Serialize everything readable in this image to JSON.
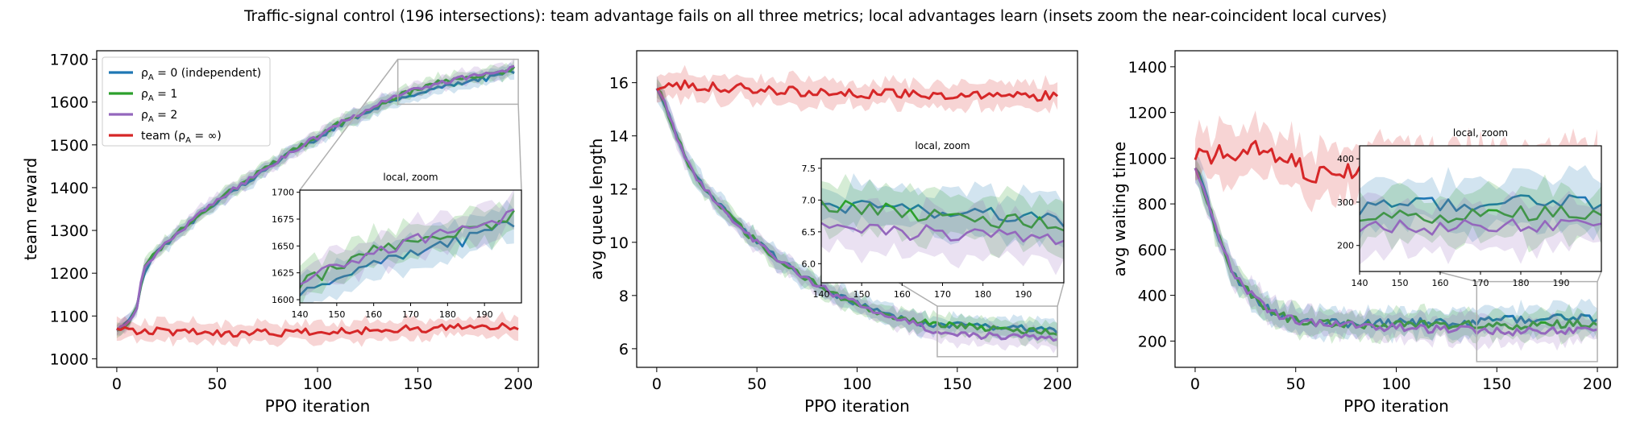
{
  "figure": {
    "title": "Traffic-signal control (196 intersections): team advantage fails on all three metrics; local advantages learn (insets zoom the near-coincident local curves)"
  },
  "colors": {
    "independent": "#1f77b4",
    "rho1": "#2ca02c",
    "rho2": "#9467bd",
    "team": "#d62728",
    "zoom_box": "#b0b0b0"
  },
  "legend": {
    "placement": "upper-left",
    "entries": [
      {
        "key": "independent",
        "prefix": "ρ",
        "sub": "A",
        "suffix": " = 0 (independent)"
      },
      {
        "key": "rho1",
        "prefix": "ρ",
        "sub": "A",
        "suffix": " = 1"
      },
      {
        "key": "rho2",
        "prefix": "ρ",
        "sub": "A",
        "suffix": " = 2"
      },
      {
        "key": "team",
        "prefix": "team (ρ",
        "sub": "A",
        "suffix": " = ∞)"
      }
    ]
  },
  "chart_data": [
    {
      "type": "line",
      "xlabel": "PPO iteration",
      "ylabel": "team reward",
      "xlim": [
        -10,
        210
      ],
      "ylim": [
        980,
        1720
      ],
      "xticks": [
        0,
        50,
        100,
        150,
        200
      ],
      "yticks": [
        1000,
        1100,
        1200,
        1300,
        1400,
        1500,
        1600,
        1700
      ],
      "shaded_bands": true,
      "series": [
        {
          "key": "independent",
          "anchors": [
            [
              0,
              1065
            ],
            [
              5,
              1082
            ],
            [
              10,
              1115
            ],
            [
              13,
              1200
            ],
            [
              20,
              1250
            ],
            [
              30,
              1290
            ],
            [
              40,
              1330
            ],
            [
              50,
              1370
            ],
            [
              60,
              1400
            ],
            [
              70,
              1430
            ],
            [
              80,
              1460
            ],
            [
              90,
              1490
            ],
            [
              100,
              1515
            ],
            [
              110,
              1545
            ],
            [
              120,
              1565
            ],
            [
              130,
              1590
            ],
            [
              140,
              1608
            ],
            [
              150,
              1622
            ],
            [
              160,
              1635
            ],
            [
              170,
              1645
            ],
            [
              180,
              1652
            ],
            [
              190,
              1660
            ],
            [
              198,
              1672
            ]
          ],
          "noise": 6,
          "band": 15
        },
        {
          "key": "rho1",
          "anchors": [
            [
              0,
              1065
            ],
            [
              5,
              1082
            ],
            [
              10,
              1120
            ],
            [
              13,
              1205
            ],
            [
              20,
              1252
            ],
            [
              30,
              1292
            ],
            [
              40,
              1333
            ],
            [
              50,
              1372
            ],
            [
              60,
              1402
            ],
            [
              70,
              1432
            ],
            [
              80,
              1462
            ],
            [
              90,
              1492
            ],
            [
              100,
              1517
            ],
            [
              110,
              1548
            ],
            [
              120,
              1568
            ],
            [
              130,
              1594
            ],
            [
              140,
              1615
            ],
            [
              150,
              1630
            ],
            [
              160,
              1645
            ],
            [
              170,
              1652
            ],
            [
              180,
              1660
            ],
            [
              190,
              1668
            ],
            [
              198,
              1678
            ]
          ],
          "noise": 6,
          "band": 15
        },
        {
          "key": "rho2",
          "anchors": [
            [
              0,
              1065
            ],
            [
              5,
              1082
            ],
            [
              10,
              1120
            ],
            [
              13,
              1205
            ],
            [
              20,
              1252
            ],
            [
              30,
              1292
            ],
            [
              40,
              1333
            ],
            [
              50,
              1372
            ],
            [
              60,
              1402
            ],
            [
              70,
              1432
            ],
            [
              80,
              1462
            ],
            [
              90,
              1492
            ],
            [
              100,
              1518
            ],
            [
              110,
              1548
            ],
            [
              120,
              1568
            ],
            [
              130,
              1594
            ],
            [
              140,
              1618
            ],
            [
              150,
              1632
            ],
            [
              160,
              1645
            ],
            [
              170,
              1654
            ],
            [
              180,
              1662
            ],
            [
              190,
              1670
            ],
            [
              198,
              1682
            ]
          ],
          "noise": 6,
          "band": 15
        },
        {
          "key": "team",
          "anchors": [
            [
              0,
              1068
            ],
            [
              50,
              1060
            ],
            [
              100,
              1062
            ],
            [
              150,
              1070
            ],
            [
              200,
              1075
            ]
          ],
          "noise": 9,
          "band": 22
        }
      ],
      "zoom": {
        "title": "local, zoom",
        "xlim": [
          140,
          200
        ],
        "ylim": [
          1597,
          1702
        ],
        "xticks": [
          140,
          150,
          160,
          170,
          180,
          190
        ],
        "yticks": [
          1600,
          1625,
          1650,
          1675,
          1700
        ],
        "series_keys": [
          "independent",
          "rho1",
          "rho2"
        ],
        "source_box": {
          "x": [
            140,
            200
          ],
          "y": [
            1595,
            1700
          ]
        }
      }
    },
    {
      "type": "line",
      "xlabel": "PPO iteration",
      "ylabel": "avg queue length",
      "xlim": [
        -10,
        210
      ],
      "ylim": [
        5.3,
        17.2
      ],
      "xticks": [
        0,
        50,
        100,
        150,
        200
      ],
      "yticks": [
        6,
        8,
        10,
        12,
        14,
        16
      ],
      "shaded_bands": true,
      "series": [
        {
          "key": "independent",
          "anchors": [
            [
              0,
              15.9
            ],
            [
              5,
              15.0
            ],
            [
              10,
              14.0
            ],
            [
              15,
              13.1
            ],
            [
              20,
              12.4
            ],
            [
              30,
              11.5
            ],
            [
              40,
              10.7
            ],
            [
              50,
              10.0
            ],
            [
              60,
              9.4
            ],
            [
              70,
              8.9
            ],
            [
              80,
              8.4
            ],
            [
              90,
              8.0
            ],
            [
              100,
              7.7
            ],
            [
              110,
              7.4
            ],
            [
              120,
              7.2
            ],
            [
              130,
              7.0
            ],
            [
              140,
              6.9
            ],
            [
              160,
              6.85
            ],
            [
              180,
              6.8
            ],
            [
              200,
              6.7
            ]
          ],
          "noise": 0.12,
          "band": 0.35
        },
        {
          "key": "rho1",
          "anchors": [
            [
              0,
              15.9
            ],
            [
              5,
              15.0
            ],
            [
              10,
              14.0
            ],
            [
              15,
              13.1
            ],
            [
              20,
              12.4
            ],
            [
              30,
              11.5
            ],
            [
              40,
              10.7
            ],
            [
              50,
              10.0
            ],
            [
              60,
              9.4
            ],
            [
              70,
              8.9
            ],
            [
              80,
              8.4
            ],
            [
              90,
              8.0
            ],
            [
              100,
              7.7
            ],
            [
              110,
              7.4
            ],
            [
              120,
              7.2
            ],
            [
              130,
              7.0
            ],
            [
              140,
              6.95
            ],
            [
              160,
              6.8
            ],
            [
              180,
              6.7
            ],
            [
              200,
              6.6
            ]
          ],
          "noise": 0.12,
          "band": 0.35
        },
        {
          "key": "rho2",
          "anchors": [
            [
              0,
              15.9
            ],
            [
              5,
              15.0
            ],
            [
              10,
              14.0
            ],
            [
              15,
              13.1
            ],
            [
              20,
              12.4
            ],
            [
              30,
              11.5
            ],
            [
              40,
              10.7
            ],
            [
              50,
              10.0
            ],
            [
              60,
              9.4
            ],
            [
              70,
              8.9
            ],
            [
              80,
              8.4
            ],
            [
              90,
              8.0
            ],
            [
              100,
              7.7
            ],
            [
              110,
              7.4
            ],
            [
              120,
              7.15
            ],
            [
              130,
              6.9
            ],
            [
              140,
              6.6
            ],
            [
              160,
              6.5
            ],
            [
              180,
              6.45
            ],
            [
              200,
              6.4
            ]
          ],
          "noise": 0.12,
          "band": 0.35
        },
        {
          "key": "team",
          "anchors": [
            [
              0,
              15.9
            ],
            [
              20,
              15.9
            ],
            [
              60,
              15.7
            ],
            [
              100,
              15.6
            ],
            [
              150,
              15.5
            ],
            [
              200,
              15.5
            ]
          ],
          "noise": 0.18,
          "band": 0.45
        }
      ],
      "zoom": {
        "title": "local, zoom",
        "xlim": [
          140,
          200
        ],
        "ylim": [
          5.7,
          7.65
        ],
        "xticks": [
          140,
          150,
          160,
          170,
          180,
          190
        ],
        "yticks": [
          6.0,
          6.5,
          7.0,
          7.5
        ],
        "series_keys": [
          "independent",
          "rho1",
          "rho2"
        ],
        "source_box": {
          "x": [
            140,
            200
          ],
          "y": [
            5.7,
            7.6
          ]
        }
      }
    },
    {
      "type": "line",
      "xlabel": "PPO iteration",
      "ylabel": "avg waiting time",
      "xlim": [
        -10,
        210
      ],
      "ylim": [
        85,
        1470
      ],
      "xticks": [
        0,
        50,
        100,
        150,
        200
      ],
      "yticks": [
        200,
        400,
        600,
        800,
        1000,
        1200,
        1400
      ],
      "shaded_bands": true,
      "series": [
        {
          "key": "independent",
          "anchors": [
            [
              0,
              960
            ],
            [
              5,
              850
            ],
            [
              10,
              700
            ],
            [
              15,
              580
            ],
            [
              20,
              480
            ],
            [
              30,
              380
            ],
            [
              40,
              320
            ],
            [
              50,
              290
            ],
            [
              60,
              280
            ],
            [
              80,
              275
            ],
            [
              100,
              280
            ],
            [
              140,
              285
            ],
            [
              160,
              295
            ],
            [
              180,
              305
            ],
            [
              200,
              300
            ]
          ],
          "noise": 18,
          "band": 55
        },
        {
          "key": "rho1",
          "anchors": [
            [
              0,
              960
            ],
            [
              5,
              850
            ],
            [
              10,
              700
            ],
            [
              15,
              580
            ],
            [
              20,
              480
            ],
            [
              30,
              380
            ],
            [
              40,
              320
            ],
            [
              50,
              290
            ],
            [
              60,
              280
            ],
            [
              80,
              270
            ],
            [
              100,
              270
            ],
            [
              140,
              270
            ],
            [
              160,
              270
            ],
            [
              180,
              275
            ],
            [
              200,
              270
            ]
          ],
          "noise": 18,
          "band": 55
        },
        {
          "key": "rho2",
          "anchors": [
            [
              0,
              960
            ],
            [
              5,
              850
            ],
            [
              10,
              700
            ],
            [
              15,
              580
            ],
            [
              20,
              480
            ],
            [
              30,
              380
            ],
            [
              40,
              320
            ],
            [
              50,
              290
            ],
            [
              60,
              280
            ],
            [
              80,
              265
            ],
            [
              100,
              260
            ],
            [
              140,
              245
            ],
            [
              160,
              240
            ],
            [
              180,
              250
            ],
            [
              200,
              245
            ]
          ],
          "noise": 18,
          "band": 55
        },
        {
          "key": "team",
          "anchors": [
            [
              0,
              1000
            ],
            [
              30,
              1040
            ],
            [
              60,
              930
            ],
            [
              90,
              960
            ],
            [
              130,
              960
            ],
            [
              160,
              930
            ],
            [
              200,
              980
            ]
          ],
          "noise": 45,
          "band": 110
        }
      ],
      "zoom": {
        "title": "local, zoom",
        "xlim": [
          140,
          200
        ],
        "ylim": [
          140,
          430
        ],
        "xticks": [
          140,
          150,
          160,
          170,
          180,
          190
        ],
        "yticks": [
          200,
          300,
          400
        ],
        "series_keys": [
          "independent",
          "rho1",
          "rho2"
        ],
        "source_box": {
          "x": [
            140,
            200
          ],
          "y": [
            110,
            460
          ]
        }
      }
    }
  ]
}
